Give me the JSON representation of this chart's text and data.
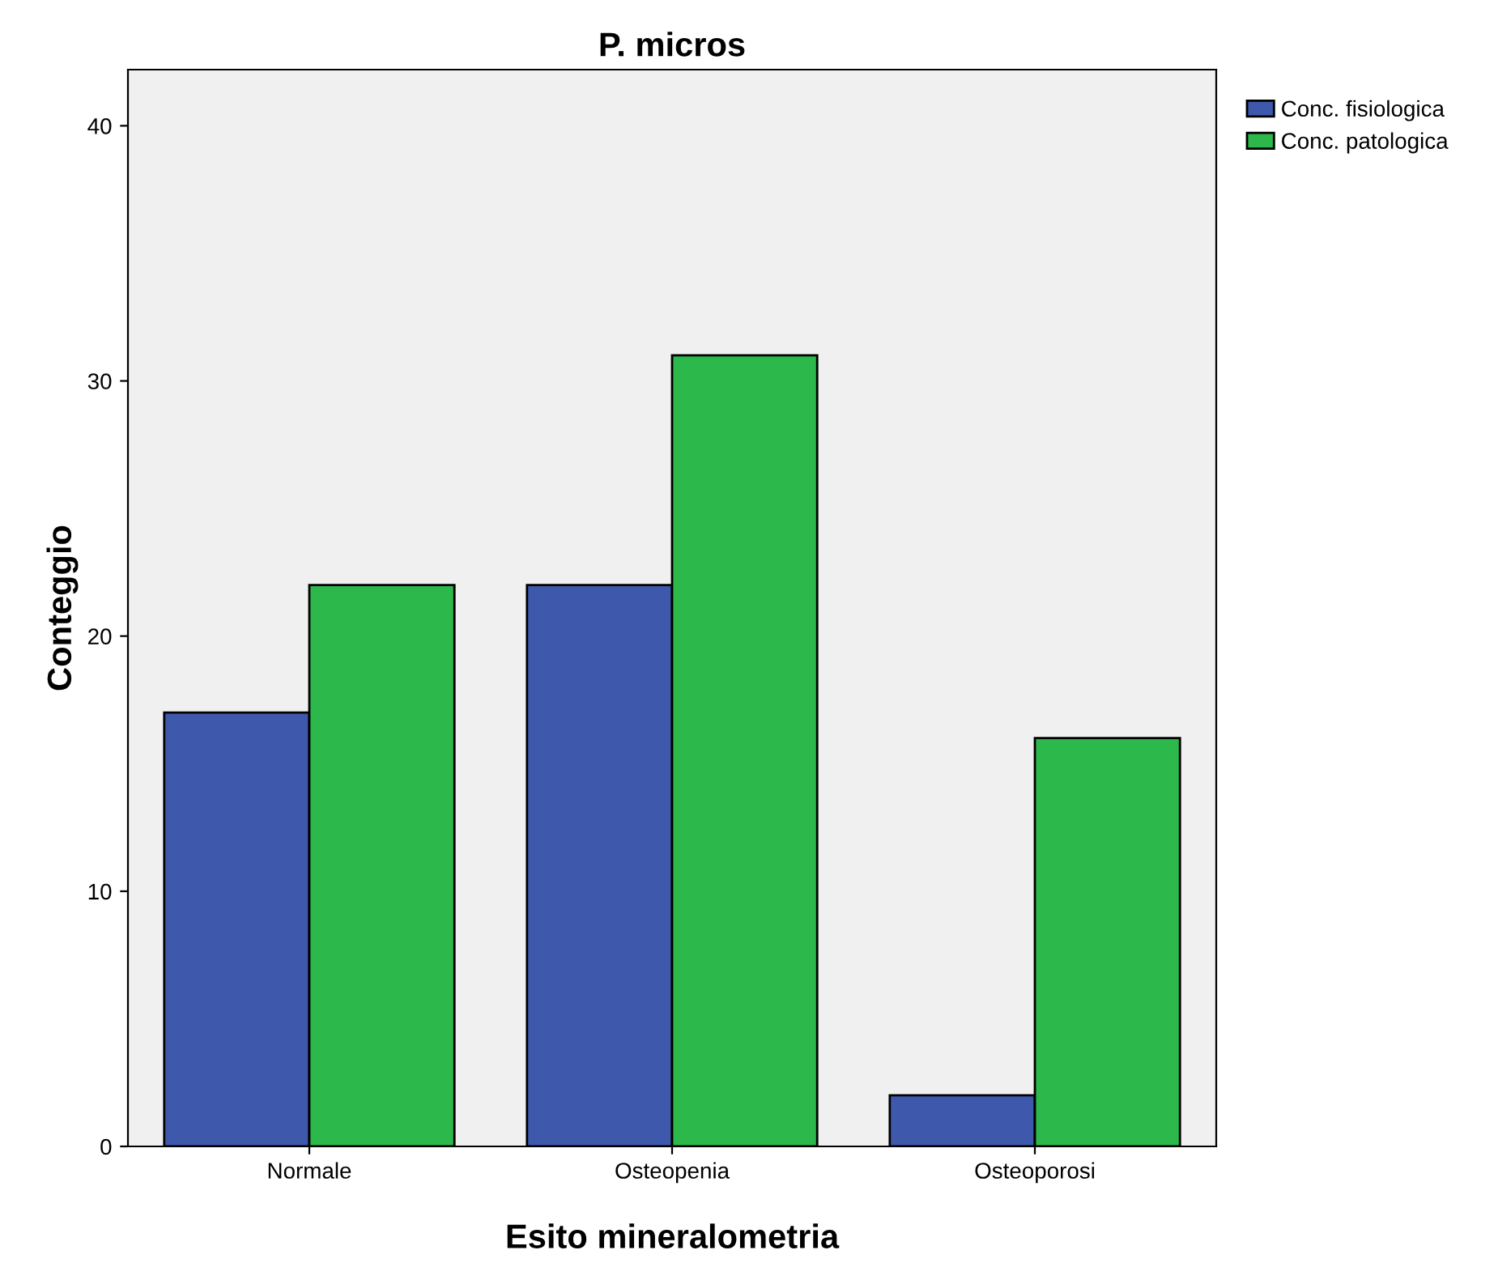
{
  "chart_data": {
    "type": "bar",
    "title": "P. micros",
    "xlabel": "Esito mineralometria",
    "ylabel": "Conteggio",
    "categories": [
      "Normale",
      "Osteopenia",
      "Osteoporosi"
    ],
    "series": [
      {
        "name": "Conc. fisiologica",
        "color": "#3e58ac",
        "values": [
          17,
          22,
          2
        ]
      },
      {
        "name": "Conc. patologica",
        "color": "#2db84c",
        "values": [
          22,
          31,
          16
        ]
      }
    ],
    "ylim": [
      0,
      42.2
    ],
    "yticks": [
      0,
      10,
      20,
      30,
      40
    ],
    "grid": false,
    "legend": "top right"
  }
}
